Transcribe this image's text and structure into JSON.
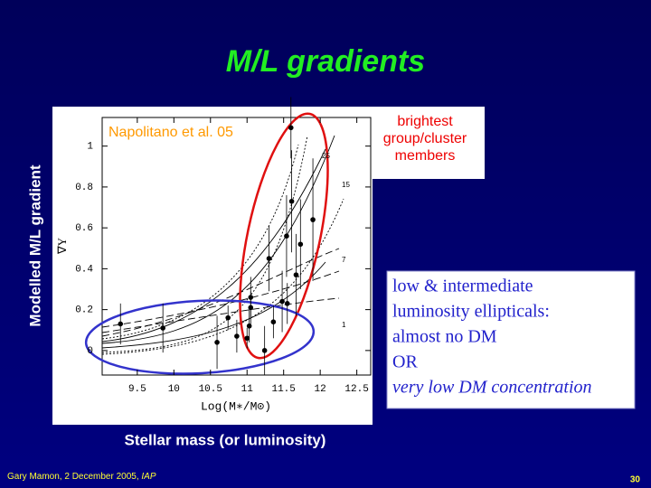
{
  "chart_data": {
    "type": "scatter",
    "title": "M/L gradients",
    "xlabel": "Stellar mass (or luminosity)",
    "ylabel": "Modelled M/L gradient",
    "inner_xlabel": "Log(M∗/M⊙)",
    "inner_ylabel": "∇Υ",
    "source": "Napolitano et al. 05",
    "curve_labels": [
      "25",
      "15",
      "7",
      "1"
    ],
    "x": [
      9.27,
      9.85,
      10.59,
      10.74,
      10.86,
      11.0,
      11.05,
      11.05,
      11.03,
      11.24,
      11.3,
      11.36,
      11.48,
      11.54,
      11.61,
      11.67,
      11.73,
      11.9,
      11.6,
      11.55
    ],
    "values": [
      0.13,
      0.11,
      0.04,
      0.16,
      0.07,
      0.06,
      0.26,
      0.21,
      0.12,
      0.0,
      0.45,
      0.14,
      0.24,
      0.56,
      0.73,
      0.37,
      0.52,
      0.64,
      1.09,
      0.23
    ],
    "errors": [
      0.1,
      0.12,
      0.13,
      0.06,
      0.08,
      0.05,
      0.1,
      0.08,
      0.08,
      0.12,
      0.16,
      0.08,
      0.15,
      0.2,
      0.25,
      0.2,
      0.22,
      0.3,
      0.15,
      0.1
    ],
    "color": "#000000",
    "xlim": [
      9.02,
      12.69
    ],
    "ylim": [
      -0.12,
      1.14
    ],
    "xticks": [
      9.5,
      10,
      10.5,
      11,
      11.5,
      12,
      12.5
    ],
    "yticks": [
      0,
      0.2,
      0.4,
      0.6,
      0.8,
      1
    ]
  },
  "callout_bright": [
    "brightest",
    "group/cluster",
    "members"
  ],
  "callout_low": [
    "low & intermediate",
    "luminosity ellipticals:",
    "almost no DM",
    "OR"
  ],
  "callout_low_italic": "very low DM concentration",
  "footer": "Gary Mamon, 2 December 2005,",
  "footer_venue": "IAP",
  "page_number": "30"
}
